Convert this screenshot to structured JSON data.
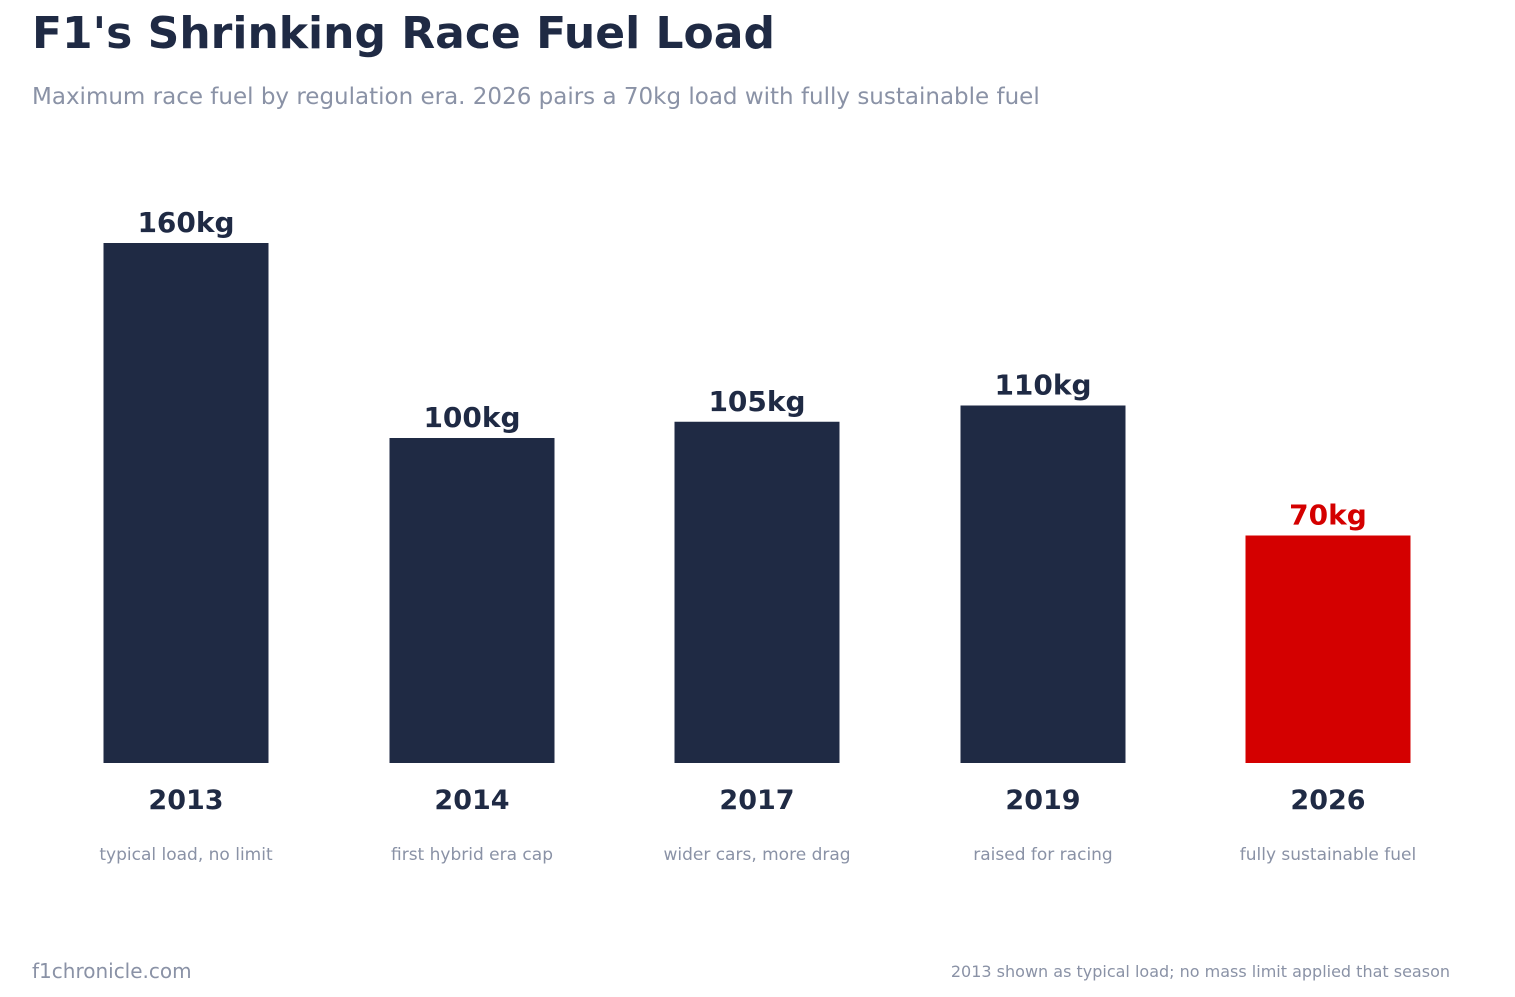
{
  "header": {
    "title": "F1's Shrinking Race Fuel Load",
    "subtitle": "Maximum race fuel by regulation era. 2026 pairs a 70kg load with fully sustainable fuel"
  },
  "chart_data": {
    "type": "bar",
    "title": "F1's Shrinking Race Fuel Load",
    "subtitle": "Maximum race fuel by regulation era. 2026 pairs a 70kg load with fully sustainable fuel",
    "xlabel": "",
    "ylabel": "",
    "unit": "kg",
    "ylim": [
      0,
      160
    ],
    "grid": false,
    "categories": [
      "2013",
      "2014",
      "2017",
      "2019",
      "2026"
    ],
    "values": [
      160,
      100,
      105,
      110,
      70
    ],
    "value_labels": [
      "160kg",
      "100kg",
      "105kg",
      "110kg",
      "70kg"
    ],
    "annotations": [
      "typical load, no limit",
      "first hybrid era cap",
      "wider cars, more drag",
      "raised for racing",
      "fully sustainable fuel"
    ],
    "highlight_index": 4
  },
  "colors": {
    "bar": "#1f2a44",
    "highlight": "#d40000",
    "muted_text": "#8a92a6"
  },
  "footer": {
    "site": "f1chronicle.com",
    "note": "2013 shown as typical load; no mass limit applied that season"
  }
}
